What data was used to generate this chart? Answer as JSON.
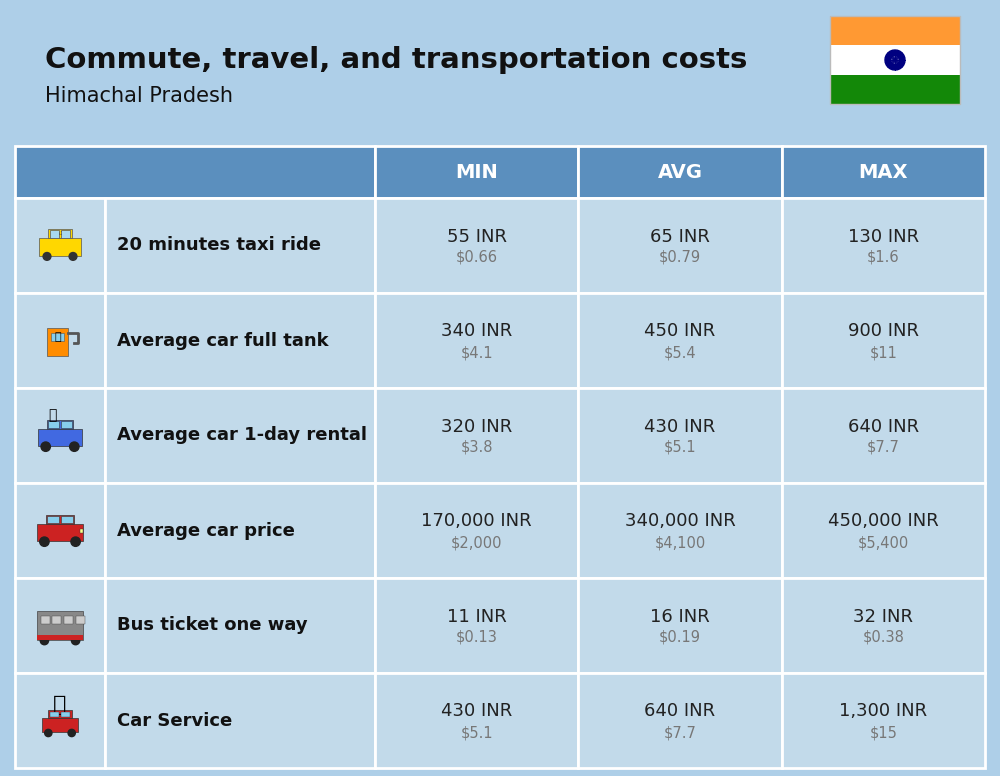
{
  "title": "Commute, travel, and transportation costs",
  "subtitle": "Himachal Pradesh",
  "bg_color": "#aecfe8",
  "header_bg": "#5b8fbe",
  "header_fg": "#ffffff",
  "row_bg": "#c2daea",
  "separator_color": "#ffffff",
  "col_headers": [
    "MIN",
    "AVG",
    "MAX"
  ],
  "rows": [
    {
      "label": "20 minutes taxi ride",
      "min_inr": "55 INR",
      "min_usd": "$0.66",
      "avg_inr": "65 INR",
      "avg_usd": "$0.79",
      "max_inr": "130 INR",
      "max_usd": "$1.6"
    },
    {
      "label": "Average car full tank",
      "min_inr": "340 INR",
      "min_usd": "$4.1",
      "avg_inr": "450 INR",
      "avg_usd": "$5.4",
      "max_inr": "900 INR",
      "max_usd": "$11"
    },
    {
      "label": "Average car 1-day rental",
      "min_inr": "320 INR",
      "min_usd": "$3.8",
      "avg_inr": "430 INR",
      "avg_usd": "$5.1",
      "max_inr": "640 INR",
      "max_usd": "$7.7"
    },
    {
      "label": "Average car price",
      "min_inr": "170,000 INR",
      "min_usd": "$2,000",
      "avg_inr": "340,000 INR",
      "avg_usd": "$4,100",
      "max_inr": "450,000 INR",
      "max_usd": "$5,400"
    },
    {
      "label": "Bus ticket one way",
      "min_inr": "11 INR",
      "min_usd": "$0.13",
      "avg_inr": "16 INR",
      "avg_usd": "$0.19",
      "max_inr": "32 INR",
      "max_usd": "$0.38"
    },
    {
      "label": "Car Service",
      "min_inr": "430 INR",
      "min_usd": "$5.1",
      "avg_inr": "640 INR",
      "avg_usd": "$7.7",
      "max_inr": "1,300 INR",
      "max_usd": "$15"
    }
  ],
  "title_fs": 21,
  "subtitle_fs": 15,
  "header_fs": 14,
  "label_fs": 13,
  "val_fs": 13,
  "usd_fs": 10.5,
  "flag_orange": "#FF9933",
  "flag_white": "#FFFFFF",
  "flag_green": "#138808",
  "flag_chakra": "#000080"
}
